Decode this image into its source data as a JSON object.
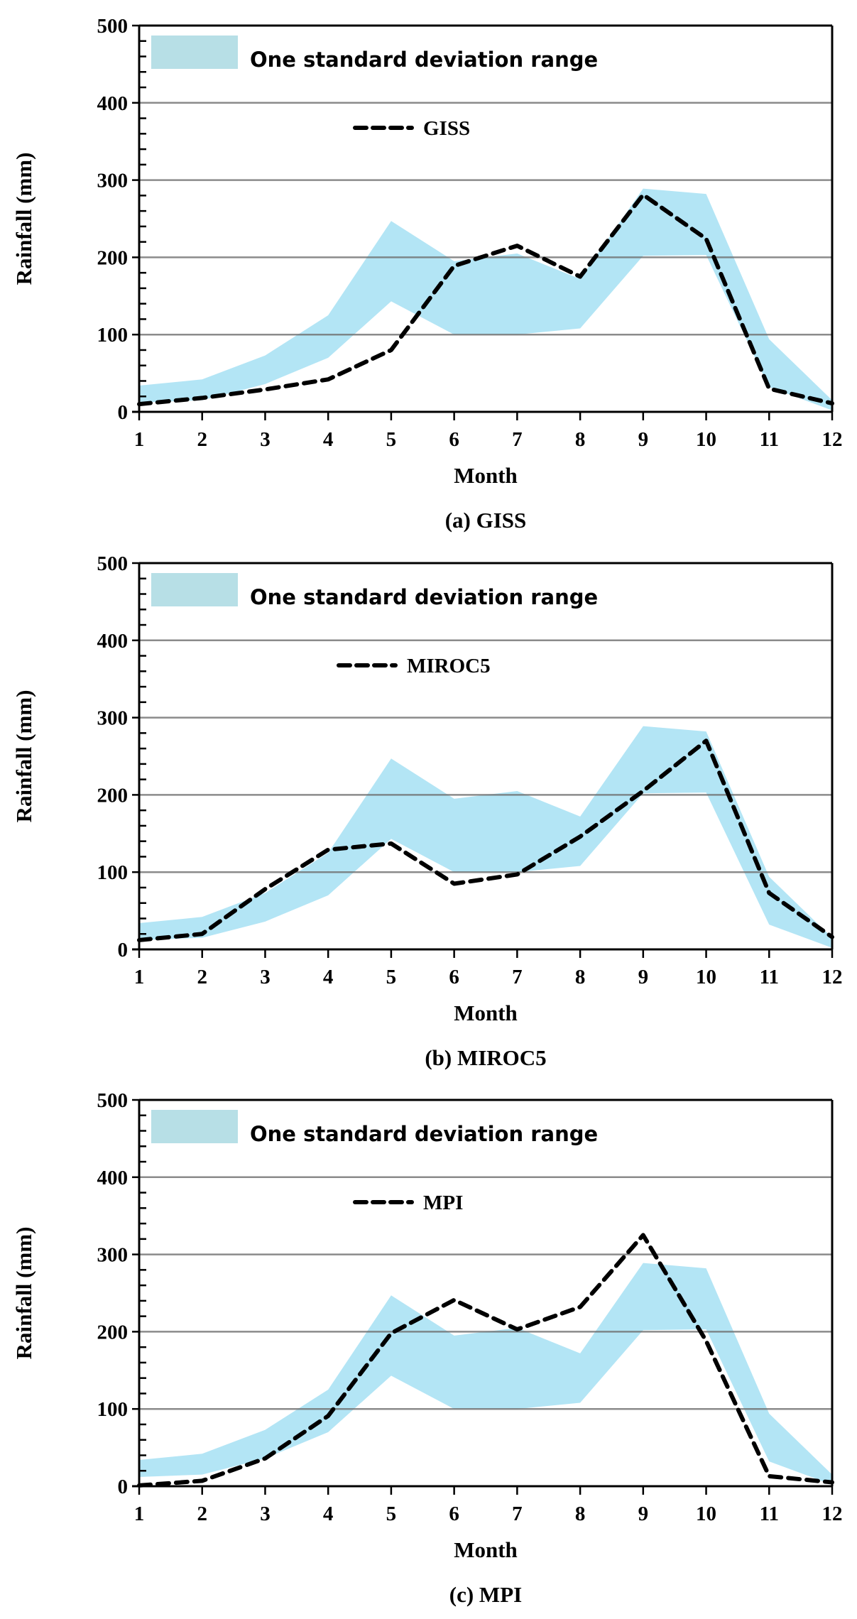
{
  "chart_data": [
    {
      "type": "line",
      "caption": "(a) GISS",
      "xlabel": "Month",
      "ylabel": "Rainfall  (mm)",
      "ylim": [
        0,
        500
      ],
      "yticks": [
        0,
        100,
        200,
        300,
        400,
        500
      ],
      "x": [
        1,
        2,
        3,
        4,
        5,
        6,
        7,
        8,
        9,
        10,
        11,
        12
      ],
      "grid": "horizontal",
      "band": {
        "name": "One standard deviation range",
        "color": "#b3e5f5",
        "legend_color": "#b7dfe6",
        "upper": [
          34,
          42,
          73,
          125,
          247,
          195,
          205,
          172,
          289,
          282,
          94,
          15
        ],
        "lower": [
          12,
          15,
          36,
          70,
          143,
          100,
          100,
          108,
          202,
          203,
          32,
          2
        ]
      },
      "series": [
        {
          "name": "GISS",
          "style": "dashed",
          "color": "#000000",
          "values": [
            10,
            18,
            29,
            42,
            80,
            189,
            215,
            175,
            281,
            224,
            30,
            11
          ]
        }
      ],
      "legend": "top-left"
    },
    {
      "type": "line",
      "caption": "(b) MIROC5",
      "xlabel": "Month",
      "ylabel": "Rainfall  (mm)",
      "ylim": [
        0,
        500
      ],
      "yticks": [
        0,
        100,
        200,
        300,
        400,
        500
      ],
      "x": [
        1,
        2,
        3,
        4,
        5,
        6,
        7,
        8,
        9,
        10,
        11,
        12
      ],
      "grid": "horizontal",
      "band": {
        "name": "One standard deviation range",
        "color": "#b3e5f5",
        "legend_color": "#b7dfe6",
        "upper": [
          34,
          42,
          73,
          125,
          247,
          195,
          205,
          172,
          289,
          282,
          94,
          15
        ],
        "lower": [
          12,
          15,
          36,
          70,
          143,
          100,
          100,
          108,
          202,
          203,
          32,
          2
        ]
      },
      "series": [
        {
          "name": "MIROC5",
          "style": "dashed",
          "color": "#000000",
          "values": [
            12,
            20,
            78,
            129,
            137,
            85,
            97,
            146,
            205,
            270,
            73,
            16
          ]
        }
      ],
      "legend": "top-left"
    },
    {
      "type": "line",
      "caption": "(c) MPI",
      "xlabel": "Month",
      "ylabel": "Rainfall  (mm)",
      "ylim": [
        0,
        500
      ],
      "yticks": [
        0,
        100,
        200,
        300,
        400,
        500
      ],
      "x": [
        1,
        2,
        3,
        4,
        5,
        6,
        7,
        8,
        9,
        10,
        11,
        12
      ],
      "grid": "horizontal",
      "band": {
        "name": "One standard deviation range",
        "color": "#b3e5f5",
        "legend_color": "#b7dfe6",
        "upper": [
          34,
          42,
          73,
          125,
          247,
          195,
          205,
          172,
          289,
          282,
          94,
          15
        ],
        "lower": [
          12,
          15,
          36,
          70,
          143,
          100,
          100,
          108,
          202,
          203,
          32,
          2
        ]
      },
      "series": [
        {
          "name": "MPI",
          "style": "dashed",
          "color": "#000000",
          "values": [
            1,
            7,
            36,
            91,
            198,
            241,
            203,
            232,
            325,
            188,
            13,
            5
          ]
        }
      ],
      "legend": "top-left"
    }
  ]
}
